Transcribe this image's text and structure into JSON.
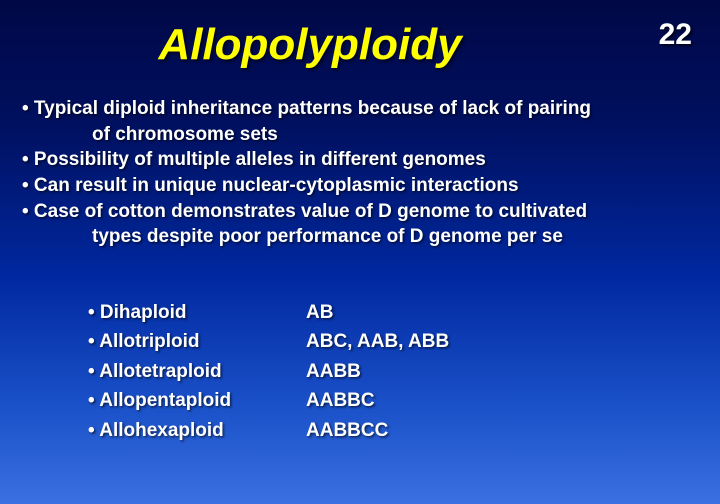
{
  "page_number": "22",
  "title": "Allopolyploidy",
  "colors": {
    "title_color": "#ffff00",
    "text_color": "#ffffff",
    "bg_top": "#000846",
    "bg_bottom": "#3a70e0"
  },
  "typography": {
    "title_fontsize_pt": 33,
    "page_number_fontsize_pt": 23,
    "body_fontsize_pt": 14,
    "font_family": "Arial",
    "title_italic": true,
    "bold": true
  },
  "bullets": {
    "b1a": "• Typical diploid inheritance patterns because of lack of pairing",
    "b1b": "of chromosome sets",
    "b2": "• Possibility of multiple alleles in different genomes",
    "b3": "• Can result in unique nuclear-cytoplasmic interactions",
    "b4a": "• Case of cotton demonstrates value of D genome to cultivated",
    "b4b": "types despite poor performance of D genome per se"
  },
  "table": {
    "rows": [
      {
        "term": "• Dihaploid",
        "val": "AB"
      },
      {
        "term": "• Allotriploid",
        "val": "ABC, AAB, ABB"
      },
      {
        "term": "• Allotetraploid",
        "val": "AABB"
      },
      {
        "term": "• Allopentaploid",
        "val": "AABBC"
      },
      {
        "term": "• Allohexaploid",
        "val": "AABBCC"
      }
    ]
  }
}
